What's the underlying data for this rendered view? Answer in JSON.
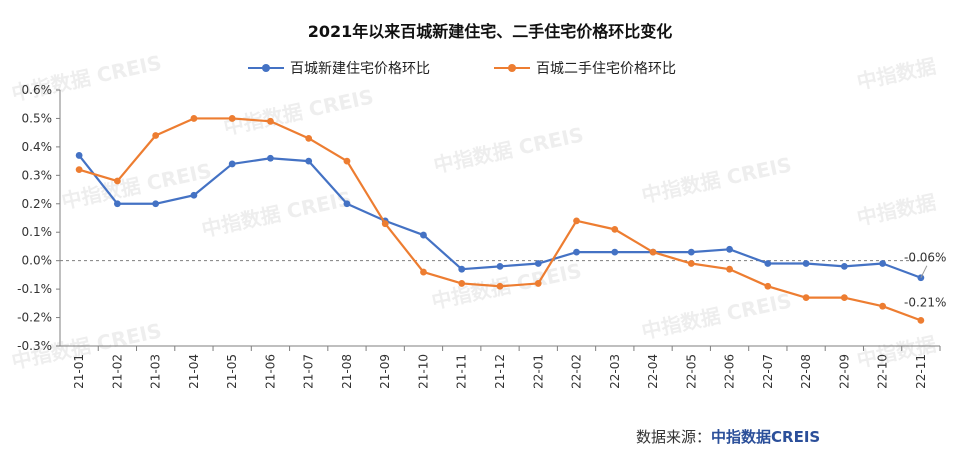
{
  "title": "2021年以来百城新建住宅、二手住宅价格环比变化",
  "source": {
    "label": "数据来源：",
    "brand": "中指数据CREIS"
  },
  "watermarks": [
    "中指数据 CREIS",
    "中指数据 CREIS",
    "中指数据 CREIS",
    "中指数据 CREIS",
    "中指数据 CREIS",
    "中指数据 CREIS",
    "中指数据 CREIS",
    "中指数据 CREIS",
    "中指数据 CREIS",
    "中指数据",
    "中指数据",
    "中指数据"
  ],
  "colors": {
    "new": "#4472c4",
    "second": "#ed7d31",
    "axis": "#7f7f7f",
    "zero_line": "#7f7f7f"
  },
  "chart_data": {
    "type": "line",
    "title": "2021年以来百城新建住宅、二手住宅价格环比变化",
    "categories": [
      "21-01",
      "21-02",
      "21-03",
      "21-04",
      "21-05",
      "21-06",
      "21-07",
      "21-08",
      "21-09",
      "21-10",
      "21-11",
      "21-12",
      "22-01",
      "22-02",
      "22-03",
      "22-04",
      "22-05",
      "22-06",
      "22-07",
      "22-08",
      "22-09",
      "22-10",
      "22-11"
    ],
    "series": [
      {
        "name": "百城新建住宅价格环比",
        "values": [
          0.37,
          0.2,
          0.2,
          0.23,
          0.34,
          0.36,
          0.35,
          0.2,
          0.14,
          0.09,
          -0.03,
          -0.02,
          -0.01,
          0.03,
          0.03,
          0.03,
          0.03,
          0.04,
          -0.01,
          -0.01,
          -0.02,
          -0.01,
          -0.06
        ]
      },
      {
        "name": "百城二手住宅价格环比",
        "values": [
          0.32,
          0.28,
          0.44,
          0.5,
          0.5,
          0.49,
          0.43,
          0.35,
          0.13,
          -0.04,
          -0.08,
          -0.09,
          -0.08,
          0.14,
          0.11,
          0.03,
          -0.01,
          -0.03,
          -0.09,
          -0.13,
          -0.13,
          -0.16,
          -0.21
        ]
      }
    ],
    "ylim": [
      -0.3,
      0.6
    ],
    "yticks": [
      "-0.3%",
      "-0.2%",
      "-0.1%",
      "0.0%",
      "0.1%",
      "0.2%",
      "0.3%",
      "0.4%",
      "0.5%",
      "0.6%"
    ],
    "yunit": "%",
    "grid": false,
    "zero_line": "dashed",
    "legend": "top-center",
    "annotations": [
      "-0.06%",
      "-0.21%"
    ]
  }
}
